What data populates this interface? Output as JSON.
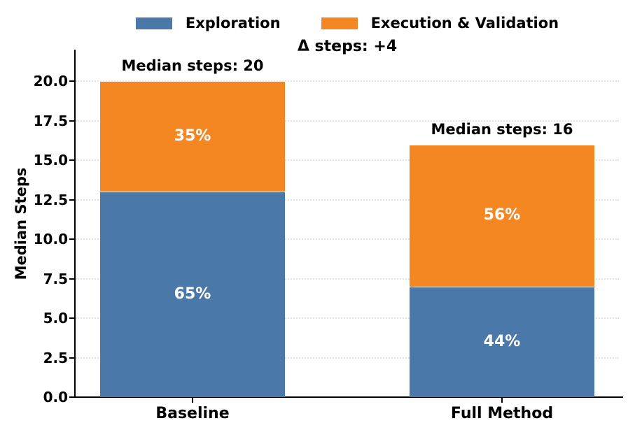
{
  "chart_data": {
    "type": "bar",
    "stacked": true,
    "ylabel": "Median Steps",
    "xlabel": "",
    "categories": [
      "Baseline",
      "Full Method"
    ],
    "series": [
      {
        "name": "Exploration",
        "color": "#4A78A8",
        "values": [
          13,
          7
        ],
        "percent_labels": [
          "65%",
          "44%"
        ]
      },
      {
        "name": "Execution & Validation",
        "color": "#F58723",
        "values": [
          7,
          9
        ],
        "percent_labels": [
          "35%",
          "56%"
        ]
      }
    ],
    "totals": [
      20,
      16
    ],
    "bar_annotations": [
      "Median steps: 20",
      "Median steps: 16"
    ],
    "delta_annotation": "Δ steps: +4",
    "ytick_labels": [
      "0.0",
      "2.5",
      "5.0",
      "7.5",
      "10.0",
      "12.5",
      "15.0",
      "17.5",
      "20.0"
    ],
    "ylim": [
      0,
      22
    ],
    "grid": "horizontal dotted",
    "legend_position": "top center"
  },
  "legend": {
    "items": [
      {
        "label": "Exploration",
        "color": "#4A78A8"
      },
      {
        "label": "Execution & Validation",
        "color": "#F58723"
      }
    ]
  },
  "colors": {
    "exploration": "#4A78A8",
    "execution_validation": "#F58723",
    "text": "#000000",
    "grid": "#e2e2e2",
    "percent_text": "#ffffff"
  }
}
